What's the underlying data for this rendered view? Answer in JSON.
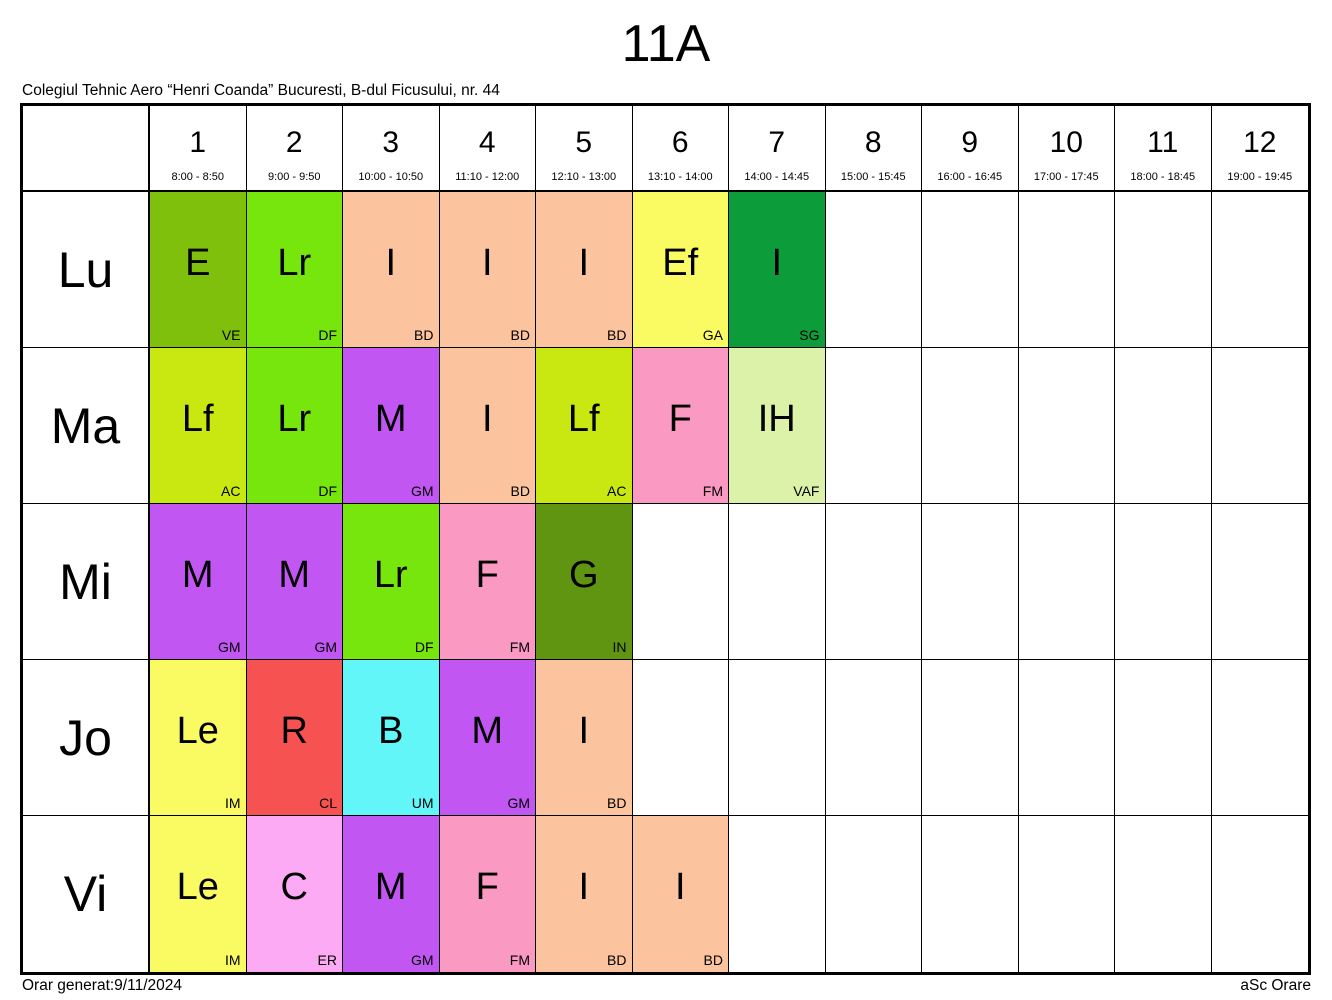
{
  "title": "11A",
  "school": "Colegiul Tehnic Aero “Henri Coanda” Bucuresti, B-dul Ficusului, nr. 44",
  "footer": {
    "generated": "Orar generat:9/11/2024",
    "brand": "aSc Orare"
  },
  "periods": [
    {
      "num": "1",
      "time": "8:00 - 8:50"
    },
    {
      "num": "2",
      "time": "9:00 - 9:50"
    },
    {
      "num": "3",
      "time": "10:00 - 10:50"
    },
    {
      "num": "4",
      "time": "11:10 - 12:00"
    },
    {
      "num": "5",
      "time": "12:10 - 13:00"
    },
    {
      "num": "6",
      "time": "13:10 - 14:00"
    },
    {
      "num": "7",
      "time": "14:00 - 14:45"
    },
    {
      "num": "8",
      "time": "15:00 - 15:45"
    },
    {
      "num": "9",
      "time": "16:00 - 16:45"
    },
    {
      "num": "10",
      "time": "17:00 - 17:45"
    },
    {
      "num": "11",
      "time": "18:00 - 18:45"
    },
    {
      "num": "12",
      "time": "19:00 - 19:45"
    }
  ],
  "days": [
    {
      "label": "Lu",
      "lessons": [
        {
          "col": 1,
          "subject": "E",
          "teacher": "VE",
          "color": "#7fc00d"
        },
        {
          "col": 2,
          "subject": "Lr",
          "teacher": "DF",
          "color": "#76e60d"
        },
        {
          "col": 3,
          "subject": "I",
          "teacher": "BD",
          "color": "#fbc49e"
        },
        {
          "col": 4,
          "subject": "I",
          "teacher": "BD",
          "color": "#fbc49e"
        },
        {
          "col": 5,
          "subject": "I",
          "teacher": "BD",
          "color": "#fbc49e"
        },
        {
          "col": 6,
          "subject": "Ef",
          "teacher": "GA",
          "color": "#fafa62"
        },
        {
          "col": 7,
          "subject": "I",
          "teacher": "SG",
          "color": "#0d9c3a"
        }
      ]
    },
    {
      "label": "Ma",
      "lessons": [
        {
          "col": 1,
          "subject": "Lf",
          "teacher": "AC",
          "color": "#c9e812"
        },
        {
          "col": 2,
          "subject": "Lr",
          "teacher": "DF",
          "color": "#76e60d"
        },
        {
          "col": 3,
          "subject": "M",
          "teacher": "GM",
          "color": "#c156f2"
        },
        {
          "col": 4,
          "subject": "I",
          "teacher": "BD",
          "color": "#fbc49e"
        },
        {
          "col": 5,
          "subject": "Lf",
          "teacher": "AC",
          "color": "#c9e812"
        },
        {
          "col": 6,
          "subject": "F",
          "teacher": "FM",
          "color": "#fa9ac2"
        },
        {
          "col": 7,
          "subject": "IH",
          "teacher": "VAF",
          "color": "#dcf2a8"
        }
      ]
    },
    {
      "label": "Mi",
      "lessons": [
        {
          "col": 1,
          "subject": "M",
          "teacher": "GM",
          "color": "#c156f2"
        },
        {
          "col": 2,
          "subject": "M",
          "teacher": "GM",
          "color": "#c156f2"
        },
        {
          "col": 3,
          "subject": "Lr",
          "teacher": "DF",
          "color": "#76e60d"
        },
        {
          "col": 4,
          "subject": "F",
          "teacher": "FM",
          "color": "#fa9ac2"
        },
        {
          "col": 5,
          "subject": "G",
          "teacher": "IN",
          "color": "#609511"
        }
      ]
    },
    {
      "label": "Jo",
      "lessons": [
        {
          "col": 1,
          "subject": "Le",
          "teacher": "IM",
          "color": "#fafa62"
        },
        {
          "col": 2,
          "subject": "R",
          "teacher": "CL",
          "color": "#f75252"
        },
        {
          "col": 3,
          "subject": "B",
          "teacher": "UM",
          "color": "#63f6f8"
        },
        {
          "col": 4,
          "subject": "M",
          "teacher": "GM",
          "color": "#c156f2"
        },
        {
          "col": 5,
          "subject": "I",
          "teacher": "BD",
          "color": "#fbc49e"
        }
      ]
    },
    {
      "label": "Vi",
      "lessons": [
        {
          "col": 1,
          "subject": "Le",
          "teacher": "IM",
          "color": "#fafa62"
        },
        {
          "col": 2,
          "subject": "C",
          "teacher": "ER",
          "color": "#fbaaf3"
        },
        {
          "col": 3,
          "subject": "M",
          "teacher": "GM",
          "color": "#c156f2"
        },
        {
          "col": 4,
          "subject": "F",
          "teacher": "FM",
          "color": "#fa9ac2"
        },
        {
          "col": 5,
          "subject": "I",
          "teacher": "BD",
          "color": "#fbc49e"
        },
        {
          "col": 6,
          "subject": "I",
          "teacher": "BD",
          "color": "#fbc49e"
        }
      ]
    }
  ]
}
